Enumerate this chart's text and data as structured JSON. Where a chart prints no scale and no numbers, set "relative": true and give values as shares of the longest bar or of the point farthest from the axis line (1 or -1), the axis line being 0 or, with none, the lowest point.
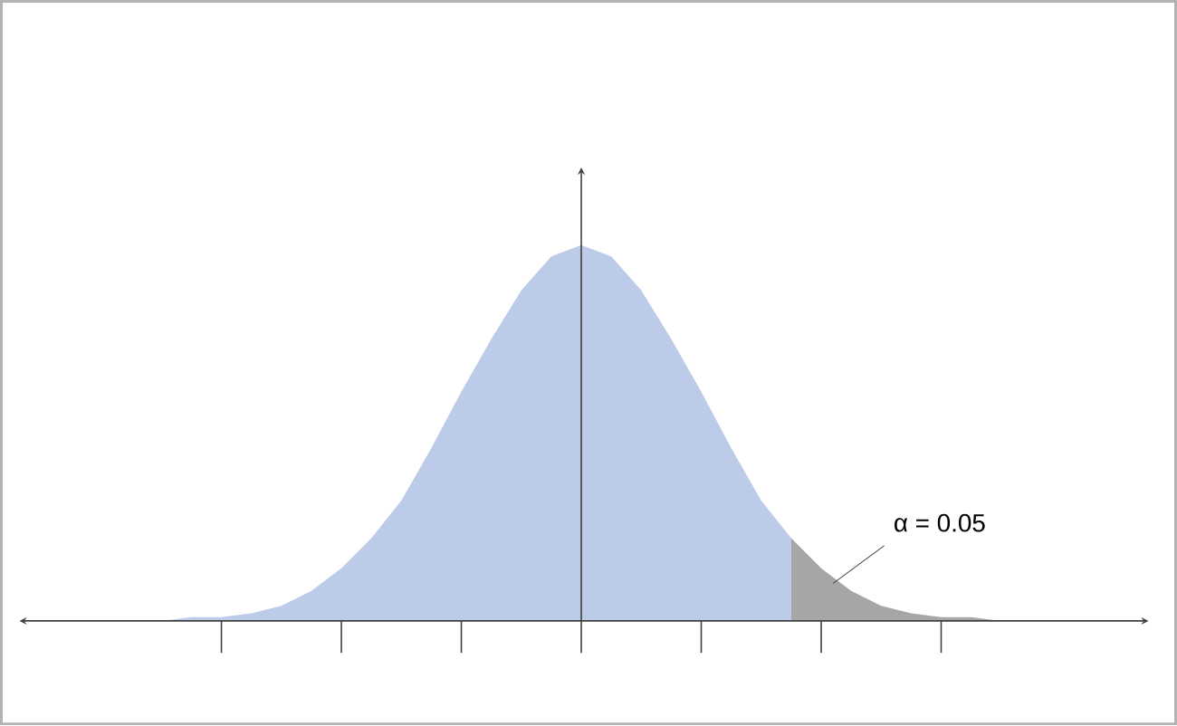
{
  "chart_data": {
    "type": "area",
    "relative": true,
    "categories": [
      null,
      null,
      null,
      null,
      null,
      null,
      null,
      null,
      null,
      null,
      null,
      null,
      null,
      null,
      null,
      null,
      null,
      null,
      null,
      null,
      null,
      null,
      null,
      null,
      null,
      null,
      null,
      null,
      null,
      null,
      null,
      null,
      null
    ],
    "series": [
      {
        "color": "#bccbe8",
        "values": [
          0,
          0,
          0,
          0.01,
          0.01,
          0.02,
          0.04,
          0.08,
          0.14,
          0.22,
          0.32,
          0.46,
          0.61,
          0.75,
          0.88,
          0.97,
          1,
          0.97,
          0.88,
          0.75,
          0.61,
          0.46,
          0.32,
          0.22,
          null,
          null,
          null,
          null,
          null,
          null,
          null,
          null,
          null
        ]
      },
      {
        "color": "#a6a6a6",
        "values": [
          null,
          null,
          null,
          null,
          null,
          null,
          null,
          null,
          null,
          null,
          null,
          null,
          null,
          null,
          null,
          null,
          null,
          null,
          null,
          null,
          null,
          null,
          null,
          0.22,
          0.14,
          0.08,
          0.04,
          0.02,
          0.01,
          0.01,
          0,
          0,
          0
        ]
      }
    ],
    "annotations": [
      "α = 0.05"
    ]
  }
}
